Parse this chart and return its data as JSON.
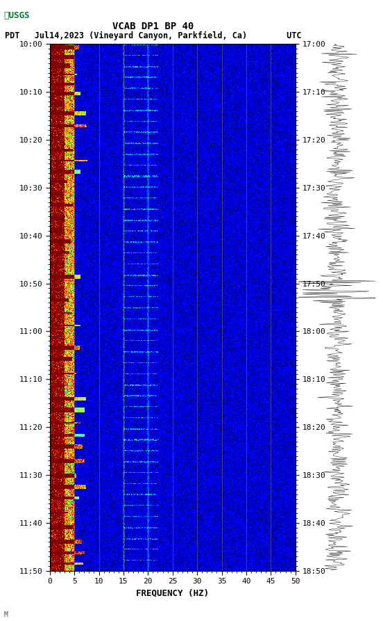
{
  "title_line1": "VCAB DP1 BP 40",
  "title_line2": "PDT   Jul14,2023 (Vineyard Canyon, Parkfield, Ca)        UTC",
  "xlabel": "FREQUENCY (HZ)",
  "freq_min": 0,
  "freq_max": 50,
  "freq_ticks": [
    0,
    5,
    10,
    15,
    20,
    25,
    30,
    35,
    40,
    45,
    50
  ],
  "time_start_pdt": "10:00",
  "time_end_pdt": "11:50",
  "time_start_utc": "17:00",
  "time_end_utc": "18:50",
  "left_time_labels": [
    "10:00",
    "10:10",
    "10:20",
    "10:30",
    "10:40",
    "10:50",
    "11:00",
    "11:10",
    "11:20",
    "11:30",
    "11:40",
    "11:50"
  ],
  "right_time_labels": [
    "17:00",
    "17:10",
    "17:20",
    "17:30",
    "17:40",
    "17:50",
    "18:00",
    "18:10",
    "18:20",
    "18:30",
    "18:40",
    "18:50"
  ],
  "vertical_lines_freq": [
    5,
    10,
    15,
    20,
    25,
    30,
    35,
    40,
    45
  ],
  "bg_color": "#ffffff",
  "colormap": "jet",
  "spectrogram_seed": 42,
  "n_time_bins": 720,
  "n_freq_bins": 500,
  "logo_color": "#007a33",
  "axis_font_size": 9,
  "title_font_size": 10,
  "tick_label_size": 8,
  "watermark": "M"
}
